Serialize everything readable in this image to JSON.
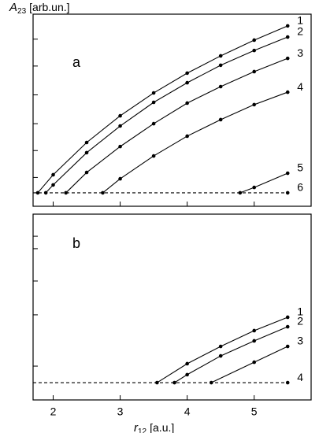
{
  "chart_data": [
    {
      "type": "line",
      "panel_label": "a",
      "ylabel": {
        "symbol": "A",
        "subscript": "23",
        "unit": "[arb.un.]"
      },
      "xlim": [
        1.7,
        5.85
      ],
      "xticks": [
        2,
        3,
        4,
        5
      ],
      "ylim": [
        0,
        10
      ],
      "yticks": [
        1.5,
        2.9,
        4.3,
        5.8,
        7.3,
        8.7
      ],
      "series": [
        {
          "name": "1",
          "color": "#000000",
          "x": [
            1.77,
            2,
            2.5,
            3,
            3.5,
            4,
            4.5,
            5,
            5.5
          ],
          "values": [
            0.7,
            1.64,
            3.32,
            4.71,
            5.9,
            6.93,
            7.83,
            8.65,
            9.39
          ]
        },
        {
          "name": "2",
          "color": "#000000",
          "x": [
            1.89,
            2,
            2.5,
            3,
            3.5,
            4,
            4.5,
            5,
            5.5
          ],
          "values": [
            0.7,
            1.11,
            2.79,
            4.18,
            5.41,
            6.43,
            7.34,
            8.11,
            8.81
          ]
        },
        {
          "name": "3",
          "color": "#000000",
          "x": [
            2.19,
            2.5,
            3,
            3.5,
            4,
            4.5,
            5,
            5.5
          ],
          "values": [
            0.7,
            1.76,
            3.11,
            4.3,
            5.37,
            6.23,
            7.01,
            7.7
          ]
        },
        {
          "name": "4",
          "color": "#000000",
          "x": [
            2.74,
            3,
            3.5,
            4,
            4.5,
            5,
            5.5
          ],
          "values": [
            0.7,
            1.43,
            2.62,
            3.65,
            4.51,
            5.29,
            5.94
          ]
        },
        {
          "name": "5",
          "color": "#000000",
          "x": [
            4.79,
            5,
            5.5
          ],
          "values": [
            0.7,
            0.98,
            1.72
          ]
        },
        {
          "name": "6",
          "color": "#000000",
          "dashed": true,
          "x": [
            1.7,
            5.5
          ],
          "values": [
            0.7,
            0.7
          ]
        }
      ]
    },
    {
      "type": "line",
      "panel_label": "b",
      "xlabel": {
        "symbol": "r",
        "subscript": "12",
        "unit": "[a.u.]"
      },
      "xlim": [
        1.7,
        5.85
      ],
      "xticks": [
        2,
        3,
        4,
        5
      ],
      "ylim": [
        0,
        10
      ],
      "yticks": [
        1.82,
        4.58,
        6.4,
        8.14,
        8.81
      ],
      "series": [
        {
          "name": "1",
          "color": "#000000",
          "x": [
            3.55,
            4,
            4.5,
            5,
            5.5
          ],
          "values": [
            0.93,
            1.95,
            2.88,
            3.73,
            4.45
          ]
        },
        {
          "name": "2",
          "color": "#000000",
          "x": [
            3.81,
            4,
            4.5,
            5,
            5.5
          ],
          "values": [
            0.93,
            1.36,
            2.37,
            3.18,
            3.94
          ]
        },
        {
          "name": "3",
          "color": "#000000",
          "x": [
            4.36,
            5,
            5.5
          ],
          "values": [
            0.93,
            2.03,
            2.88
          ]
        },
        {
          "name": "4",
          "color": "#000000",
          "dashed": true,
          "x": [
            1.7,
            5.5
          ],
          "values": [
            0.93,
            0.93
          ]
        }
      ]
    }
  ]
}
